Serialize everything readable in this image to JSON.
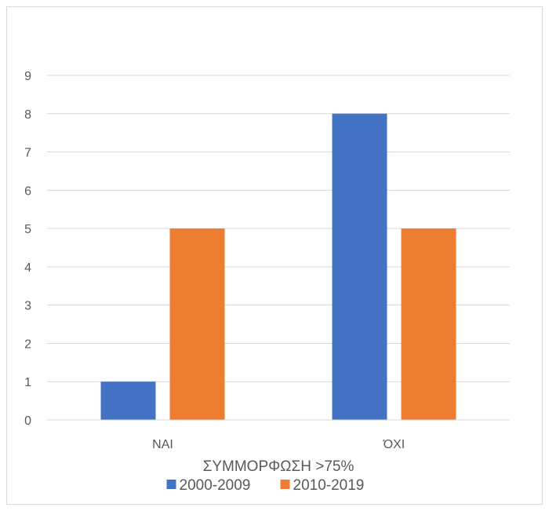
{
  "chart_data": {
    "type": "bar",
    "categories": [
      "ΝΑΙ",
      "ΌΧΙ"
    ],
    "series": [
      {
        "name": "2000-2009",
        "values": [
          1,
          8
        ],
        "color": "#4472c4"
      },
      {
        "name": "2010-2019",
        "values": [
          5,
          5
        ],
        "color": "#ed7d31"
      }
    ],
    "title": "",
    "xlabel": "ΣΥΜΜΟΡΦΩΣΗ >75%",
    "ylabel": "",
    "ylim": [
      0,
      9
    ],
    "yticks": [
      0,
      1,
      2,
      3,
      4,
      5,
      6,
      7,
      8,
      9
    ],
    "grid": true,
    "legend": "bottom",
    "gridColor": "#d9d9d9",
    "textColor": "#595959"
  }
}
